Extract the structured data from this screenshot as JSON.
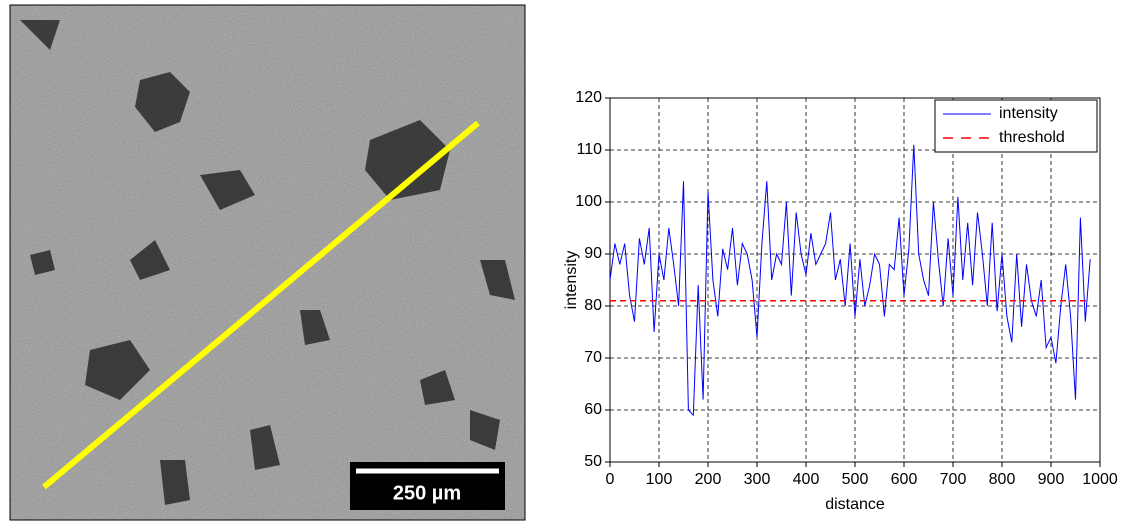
{
  "image": {
    "scale_bar": "250 µm"
  },
  "chart_data": {
    "type": "line",
    "xlabel": "distance",
    "ylabel": "intensity",
    "x": [
      0,
      10,
      20,
      30,
      40,
      50,
      60,
      70,
      80,
      90,
      100,
      110,
      120,
      130,
      140,
      150,
      160,
      170,
      180,
      190,
      200,
      210,
      220,
      230,
      240,
      250,
      260,
      270,
      280,
      290,
      300,
      310,
      320,
      330,
      340,
      350,
      360,
      370,
      380,
      390,
      400,
      410,
      420,
      430,
      440,
      450,
      460,
      470,
      480,
      490,
      500,
      510,
      520,
      530,
      540,
      550,
      560,
      570,
      580,
      590,
      600,
      610,
      620,
      630,
      640,
      650,
      660,
      670,
      680,
      690,
      700,
      710,
      720,
      730,
      740,
      750,
      760,
      770,
      780,
      790,
      800,
      810,
      820,
      830,
      840,
      850,
      860,
      870,
      880,
      890,
      900,
      910,
      920,
      930,
      940,
      950,
      960,
      970,
      980
    ],
    "series": [
      {
        "name": "intensity",
        "color": "#0000ff",
        "linestyle": "solid",
        "values": [
          85,
          92,
          88,
          92,
          82,
          77,
          93,
          88,
          95,
          75,
          90,
          85,
          95,
          88,
          80,
          104,
          60,
          59,
          84,
          62,
          102,
          85,
          78,
          91,
          87,
          95,
          84,
          92,
          90,
          85,
          74,
          92,
          104,
          85,
          90,
          88,
          100,
          82,
          98,
          90,
          86,
          94,
          88,
          90,
          92,
          98,
          85,
          89,
          80,
          92,
          78,
          89,
          80,
          84,
          90,
          88,
          78,
          88,
          87,
          97,
          82,
          91,
          111,
          90,
          85,
          82,
          100,
          89,
          80,
          93,
          82,
          101,
          85,
          96,
          84,
          98,
          90,
          80,
          96,
          79,
          90,
          78,
          73,
          90,
          76,
          88,
          81,
          78,
          85,
          72,
          74,
          69,
          80,
          88,
          78,
          62,
          97,
          77,
          89
        ]
      },
      {
        "name": "threshold",
        "color": "#ff0000",
        "linestyle": "dashed",
        "values": [
          81,
          81,
          81,
          81,
          81,
          81,
          81,
          81,
          81,
          81,
          81,
          81,
          81,
          81,
          81,
          81,
          81,
          81,
          81,
          81,
          81,
          81,
          81,
          81,
          81,
          81,
          81,
          81,
          81,
          81,
          81,
          81,
          81,
          81,
          81,
          81,
          81,
          81,
          81,
          81,
          81,
          81,
          81,
          81,
          81,
          81,
          81,
          81,
          81,
          81,
          81,
          81,
          81,
          81,
          81,
          81,
          81,
          81,
          81,
          81,
          81,
          81,
          81,
          81,
          81,
          81,
          81,
          81,
          81,
          81,
          81,
          81,
          81,
          81,
          81,
          81,
          81,
          81,
          81,
          81,
          81,
          81,
          81,
          81,
          81,
          81,
          81,
          81,
          81,
          81,
          81,
          81,
          81,
          81,
          81,
          81,
          81,
          81,
          81
        ]
      }
    ],
    "xlim": [
      0,
      1000
    ],
    "xticks": [
      0,
      100,
      200,
      300,
      400,
      500,
      600,
      700,
      800,
      900,
      1000
    ],
    "ylim": [
      50,
      120
    ],
    "yticks": [
      50,
      60,
      70,
      80,
      90,
      100,
      110,
      120
    ],
    "grid": true,
    "legend": "upper right"
  }
}
